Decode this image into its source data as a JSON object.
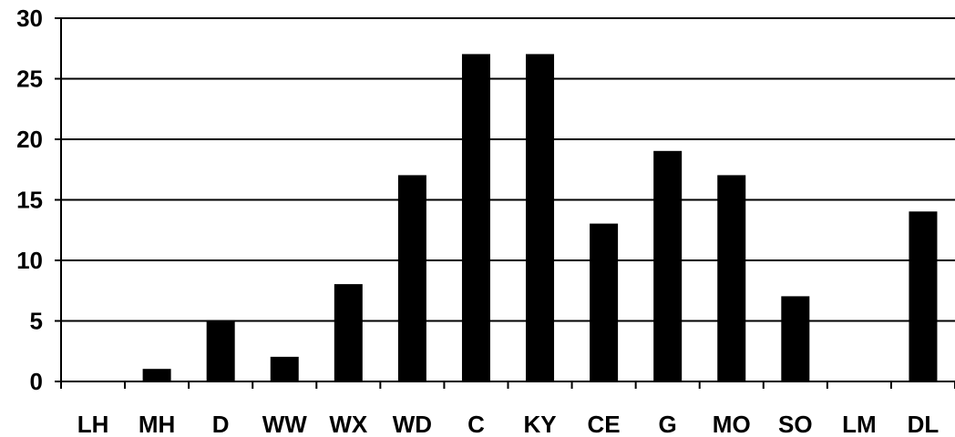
{
  "chart_data": {
    "type": "bar",
    "categories": [
      "LH",
      "MH",
      "D",
      "WW",
      "WX",
      "WD",
      "C",
      "KY",
      "CE",
      "G",
      "MO",
      "SO",
      "LM",
      "DL"
    ],
    "values": [
      0,
      1,
      5,
      2,
      8,
      17,
      27,
      27,
      13,
      19,
      17,
      7,
      0,
      14
    ],
    "title": "",
    "xlabel": "",
    "ylabel": "",
    "ylim": [
      0,
      30
    ],
    "yticks": [
      0,
      5,
      10,
      15,
      20,
      25,
      30
    ],
    "grid": true,
    "legend": "none",
    "colors": {
      "bar": "#000000",
      "grid": "#000000",
      "background": "#ffffff"
    }
  }
}
